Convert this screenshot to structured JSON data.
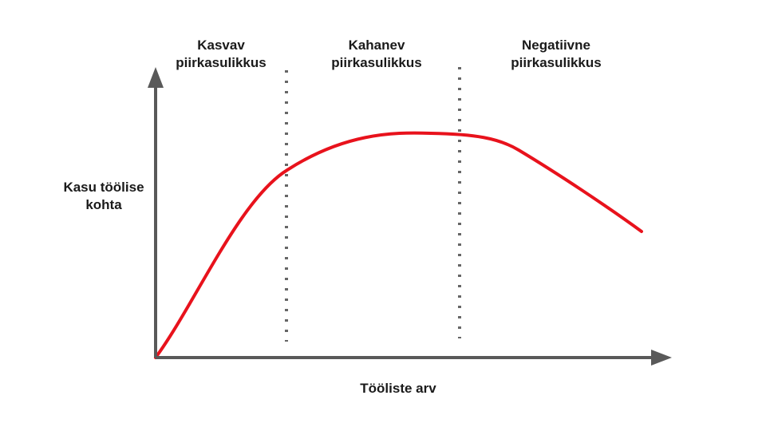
{
  "colors": {
    "axis": "#595959",
    "curve": "#e8121c",
    "divider": "#666666",
    "text": "#1a1a1a",
    "background": "#ffffff"
  },
  "regions": [
    {
      "line1": "Kasvav",
      "line2": "piirkasulikkus"
    },
    {
      "line1": "Kahanev",
      "line2": "piirkasulikkus"
    },
    {
      "line1": "Negatiivne",
      "line2": "piirkasulikkus"
    }
  ],
  "y_axis_label": {
    "line1": "Kasu töölise",
    "line2": "kohta"
  },
  "x_axis_label": "Tööliste arv",
  "icons": {
    "y_arrow": "arrow-up-icon",
    "x_arrow": "arrow-right-icon"
  }
}
